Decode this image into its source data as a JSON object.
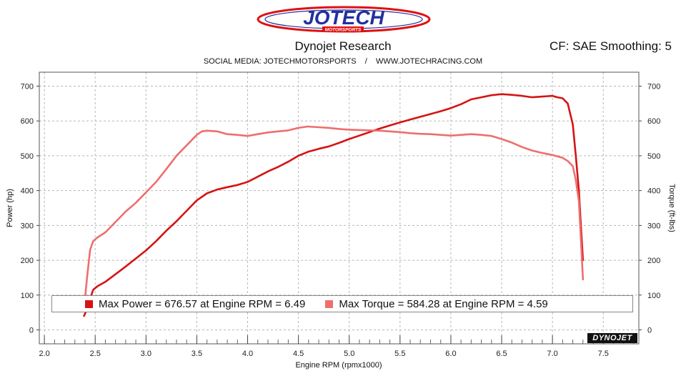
{
  "header": {
    "logo_text": "JOTECH",
    "logo_subtext": "MOTORSPORTS",
    "title": "Dynojet Research",
    "cf_text": "CF: SAE Smoothing: 5",
    "subtitle": "SOCIAL MEDIA: JOTECHMOTORSPORTS    /    WWW.JOTECHRACING.COM",
    "watermark_text": "DYNOJET"
  },
  "colors": {
    "power": "#d41414",
    "torque": "#ee6e6e",
    "grid": "#b8b8b8",
    "brand_red": "#e01010",
    "brand_blue": "#2330a0"
  },
  "legend": {
    "power_label": "Max Power = 676.57 at Engine RPM = 6.49",
    "torque_label": "Max Torque = 584.28 at Engine RPM = 4.59"
  },
  "chart_data": {
    "type": "line",
    "xlabel": "Engine RPM (rpmx1000)",
    "ylabel_left": "Power (hp)",
    "ylabel_right": "Torque (ft-lbs)",
    "xlim": [
      1.95,
      7.85
    ],
    "ylim": [
      -40,
      740
    ],
    "x_ticks": [
      "2.0",
      "2.5",
      "3.0",
      "3.5",
      "4.0",
      "4.5",
      "5.0",
      "5.5",
      "6.0",
      "6.5",
      "7.0",
      "7.5"
    ],
    "x_tick_values": [
      2.0,
      2.5,
      3.0,
      3.5,
      4.0,
      4.5,
      5.0,
      5.5,
      6.0,
      6.5,
      7.0,
      7.5
    ],
    "y_ticks": [
      0,
      100,
      200,
      300,
      400,
      500,
      600,
      700
    ],
    "grid": true,
    "legend_position": "bottom",
    "series": [
      {
        "name": "Power",
        "color": "#d41414",
        "x": [
          2.39,
          2.42,
          2.45,
          2.48,
          2.52,
          2.6,
          2.7,
          2.8,
          2.9,
          3.0,
          3.1,
          3.2,
          3.3,
          3.4,
          3.5,
          3.6,
          3.7,
          3.8,
          3.9,
          4.0,
          4.1,
          4.2,
          4.3,
          4.4,
          4.5,
          4.6,
          4.7,
          4.8,
          4.9,
          5.0,
          5.1,
          5.2,
          5.3,
          5.4,
          5.5,
          5.6,
          5.7,
          5.8,
          5.9,
          6.0,
          6.1,
          6.2,
          6.3,
          6.4,
          6.5,
          6.6,
          6.7,
          6.8,
          6.9,
          7.0,
          7.05,
          7.1,
          7.15,
          7.2,
          7.23,
          7.26,
          7.28,
          7.3
        ],
        "values": [
          40,
          60,
          90,
          115,
          125,
          138,
          160,
          182,
          205,
          228,
          255,
          285,
          312,
          342,
          372,
          392,
          403,
          410,
          416,
          425,
          440,
          455,
          468,
          483,
          500,
          512,
          520,
          527,
          537,
          548,
          558,
          568,
          578,
          587,
          596,
          604,
          612,
          620,
          628,
          637,
          648,
          662,
          668,
          674,
          677,
          675,
          672,
          668,
          670,
          672,
          668,
          665,
          650,
          590,
          500,
          400,
          300,
          200
        ]
      },
      {
        "name": "Torque",
        "color": "#ee6e6e",
        "x": [
          2.39,
          2.42,
          2.45,
          2.48,
          2.52,
          2.6,
          2.7,
          2.8,
          2.9,
          3.0,
          3.1,
          3.2,
          3.3,
          3.4,
          3.5,
          3.55,
          3.6,
          3.7,
          3.8,
          3.9,
          4.0,
          4.1,
          4.2,
          4.3,
          4.4,
          4.5,
          4.59,
          4.7,
          4.8,
          4.9,
          5.0,
          5.1,
          5.2,
          5.3,
          5.4,
          5.5,
          5.6,
          5.7,
          5.8,
          5.9,
          6.0,
          6.1,
          6.2,
          6.3,
          6.4,
          6.5,
          6.6,
          6.7,
          6.8,
          6.9,
          7.0,
          7.1,
          7.15,
          7.2,
          7.23,
          7.26,
          7.28,
          7.3
        ],
        "values": [
          60,
          150,
          230,
          255,
          265,
          280,
          310,
          340,
          365,
          395,
          425,
          462,
          500,
          530,
          560,
          570,
          572,
          570,
          562,
          560,
          557,
          562,
          567,
          570,
          573,
          580,
          584,
          582,
          580,
          577,
          575,
          574,
          573,
          572,
          570,
          568,
          565,
          563,
          562,
          560,
          558,
          560,
          562,
          560,
          557,
          548,
          538,
          525,
          515,
          508,
          502,
          494,
          485,
          470,
          430,
          370,
          260,
          145
        ]
      }
    ]
  }
}
